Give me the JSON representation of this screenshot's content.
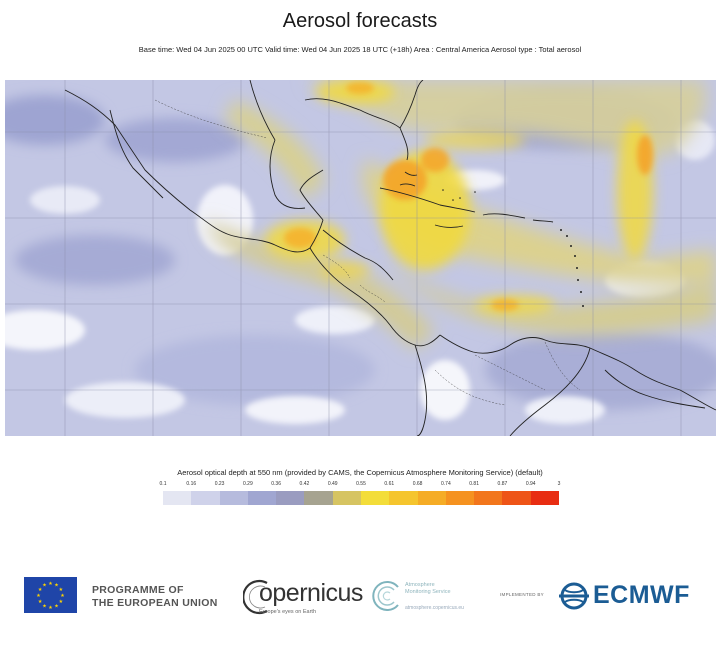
{
  "header": {
    "title": "Aerosol forecasts",
    "subtitle": "Base time: Wed 04 Jun 2025 00 UTC Valid time: Wed 04 Jun 2025 18 UTC (+18h) Area : Central America Aerosol type : Total aerosol"
  },
  "map": {
    "region": "Central America",
    "field": "Total aerosol optical depth at 550 nm",
    "hotspots": [
      {
        "area": "Gulf of Mexico / Florida Straits / Cuba",
        "level": 0.6
      },
      {
        "area": "Southern Mexico",
        "level": 0.6
      },
      {
        "area": "Central Atlantic plume",
        "level": 0.6
      },
      {
        "area": "Northern Venezuela coast",
        "level": 0.55
      }
    ]
  },
  "legend": {
    "title": "Aerosol optical depth at 550 nm (provided by CAMS, the Copernicus Atmosphere Monitoring Service) (default)",
    "ticks": [
      "0.1",
      "0.16",
      "0.23",
      "0.29",
      "0.36",
      "0.42",
      "0.49",
      "0.55",
      "0.61",
      "0.68",
      "0.74",
      "0.81",
      "0.87",
      "0.94",
      "3"
    ],
    "colors": [
      "#e4e6f2",
      "#cfd2ea",
      "#b6bbdd",
      "#a0a6d1",
      "#9a9cc0",
      "#a6a390",
      "#d6c462",
      "#f3dd3a",
      "#f5c52e",
      "#f5ac26",
      "#f59220",
      "#f2761c",
      "#ee5417",
      "#e82d12"
    ]
  },
  "footer": {
    "eu_line1": "PROGRAMME OF",
    "eu_line2": "THE EUROPEAN UNION",
    "copernicus": "opernicus",
    "copernicus_tagline": "Europe's eyes on Earth",
    "cams_line1": "Atmosphere",
    "cams_line2": "Monitoring Service",
    "cams_url": "atmosphere.copernicus.eu",
    "implemented_by": "IMPLEMENTED BY",
    "ecmwf": "ECMWF"
  }
}
